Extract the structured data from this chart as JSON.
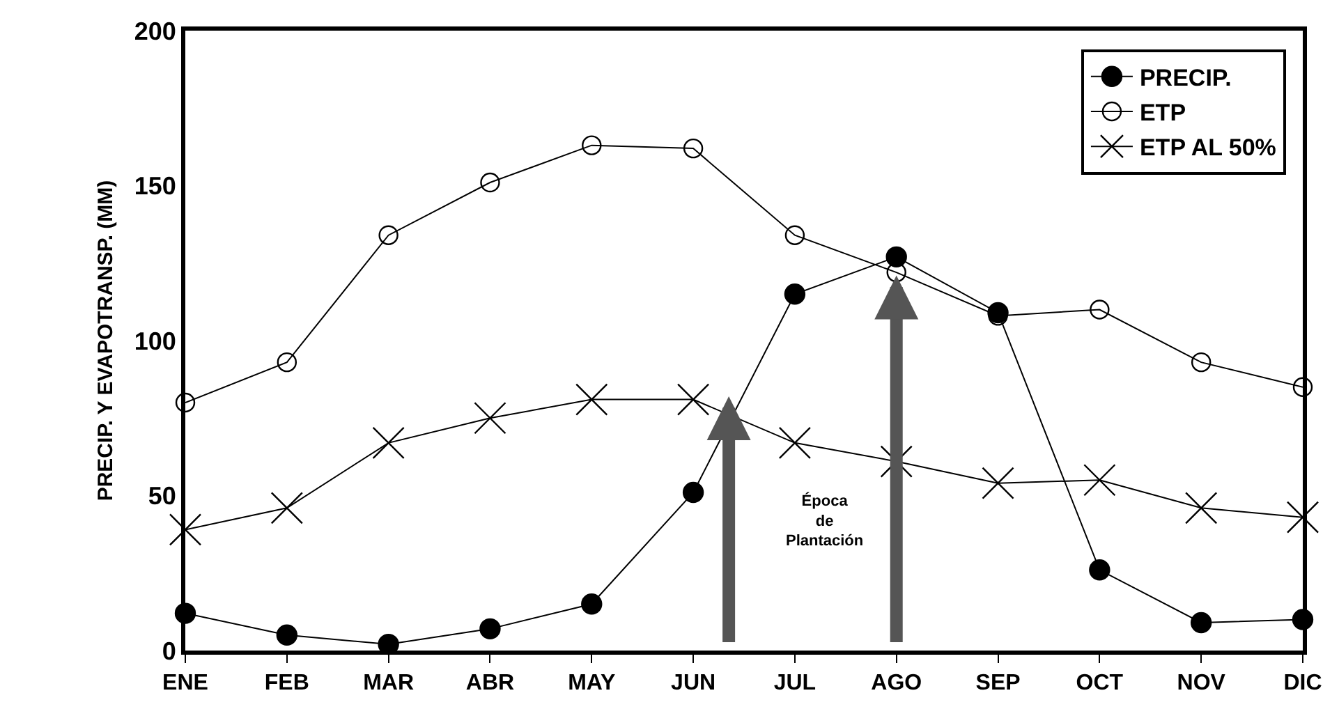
{
  "chart_data": {
    "type": "line",
    "ylabel": "PRECIP. Y EVAPOTRANSP. (MM)",
    "categories": [
      "ENE",
      "FEB",
      "MAR",
      "ABR",
      "MAY",
      "JUN",
      "JUL",
      "AGO",
      "SEP",
      "OCT",
      "NOV",
      "DIC"
    ],
    "series": [
      {
        "name": "PRECIP.",
        "color": "#000000",
        "marker": "circle",
        "values": [
          12,
          5,
          2,
          7,
          15,
          51,
          115,
          127,
          109,
          26,
          9,
          10
        ]
      },
      {
        "name": "ETP",
        "color": "#000000",
        "marker": "circle-open",
        "values": [
          80,
          93,
          134,
          151,
          163,
          162,
          134,
          122,
          108,
          110,
          93,
          85
        ]
      },
      {
        "name": "ETP AL 50%",
        "color": "#000000",
        "marker": "cross",
        "values": [
          39,
          46,
          67,
          75,
          81,
          81,
          67,
          61,
          54,
          55,
          46,
          43
        ]
      }
    ],
    "ylim": [
      0,
      200
    ],
    "yticks": [
      0,
      50,
      100,
      150,
      200
    ],
    "legend": "top right",
    "line_style": "solid",
    "annotations": [
      "Época de Plantación"
    ]
  }
}
